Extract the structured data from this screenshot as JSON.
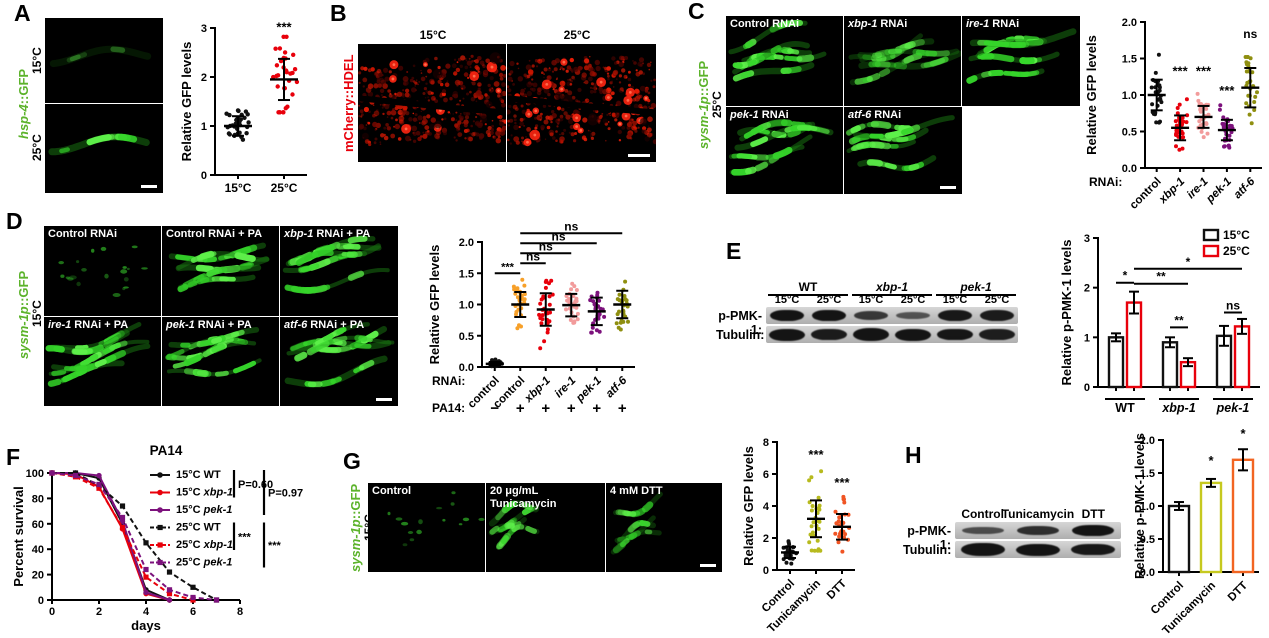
{
  "panel_a": {
    "label": "A",
    "reporter": "_hsp-4_::GFP",
    "images": [
      {
        "temp": "15°C",
        "intensity": "dim"
      },
      {
        "temp": "25°C",
        "intensity": "bright"
      }
    ]
  },
  "panel_b": {
    "label": "B",
    "reporter": "mCherry::HDEL",
    "images": [
      {
        "temp": "15°C",
        "intensity": "medium"
      },
      {
        "temp": "25°C",
        "intensity": "bright"
      }
    ]
  },
  "panel_c": {
    "label": "C",
    "reporter": "_sysm-1p_::GFP",
    "temp": "25°C",
    "images": [
      {
        "label": "Control RNAi",
        "intensity": "bright"
      },
      {
        "label": "_xbp-1_ RNAi",
        "intensity": "medium"
      },
      {
        "label": "_ire-1_ RNAi",
        "intensity": "bright"
      },
      {
        "label": "_pek-1_ RNAi",
        "intensity": "bright"
      },
      {
        "label": "_atf-6_ RNAi",
        "intensity": "bright"
      }
    ]
  },
  "panel_d": {
    "label": "D",
    "reporter": "_sysm-1p_::GFP",
    "temp": "15°C",
    "images": [
      {
        "label": "Control RNAi",
        "intensity": "dim"
      },
      {
        "label": "Control RNAi + PA",
        "intensity": "bright"
      },
      {
        "label": "_xbp-1_ RNAi + PA",
        "intensity": "bright"
      },
      {
        "label": "_ire-1_ RNAi + PA",
        "intensity": "bright"
      },
      {
        "label": "_pek-1_ RNAi + PA",
        "intensity": "bright"
      },
      {
        "label": "_atf-6_ RNAi + PA",
        "intensity": "bright"
      }
    ]
  },
  "panel_e": {
    "label": "E",
    "blot": {
      "groups": [
        "WT",
        "_xbp-1_",
        "_pek-1_"
      ],
      "lane_temps": [
        "15°C",
        "25°C",
        "15°C",
        "25°C",
        "15°C",
        "25°C"
      ],
      "rows": [
        {
          "name": "p-PMK-1:",
          "intensities": [
            1,
            1.1,
            0.62,
            0.35,
            0.95,
            0.92
          ]
        },
        {
          "name": "Tubulin:",
          "intensities": [
            1,
            0.92,
            1.05,
            1,
            0.98,
            0.9
          ]
        }
      ]
    }
  },
  "panel_f": {
    "label": "F"
  },
  "panel_g": {
    "label": "G",
    "reporter": "_sysm-1p_::GFP",
    "temp": "15°C",
    "images": [
      {
        "label": "Control",
        "intensity": "dim"
      },
      {
        "label": "20 μg/mL Tunicamycin",
        "intensity": "medium"
      },
      {
        "label": "4 mM DTT",
        "intensity": "medium"
      }
    ]
  },
  "panel_h": {
    "label": "H",
    "blot": {
      "lanes": [
        "Control",
        "Tunicamycin",
        "DTT"
      ],
      "rows": [
        {
          "name": "p-PMK-1:",
          "intensities": [
            0.42,
            0.72,
            1.02
          ]
        },
        {
          "name": "Tubulin:",
          "intensities": [
            1.15,
            1,
            0.95
          ]
        }
      ]
    }
  },
  "chart_data": {
    "a": {
      "type": "scatter",
      "ylabel": "Relative GFP levels",
      "ylim": [
        0,
        3
      ],
      "yticks": [
        0,
        1,
        2,
        3
      ],
      "ydec": 0,
      "rotate_labels": false,
      "groups": [
        {
          "label": "15°C",
          "color": "#111111",
          "n": 32,
          "mean": 1.0,
          "sd": 0.2,
          "min": 0.72,
          "max": 1.6,
          "sig": ""
        },
        {
          "label": "25°C",
          "color": "#e8000b",
          "n": 32,
          "mean": 1.95,
          "sd": 0.42,
          "min": 1.28,
          "max": 2.82,
          "sig": "***",
          "sig_y": 2.93
        }
      ]
    },
    "c": {
      "type": "scatter",
      "ylabel": "Relative GFP levels",
      "ylim": [
        0,
        2
      ],
      "yticks": [
        0,
        0.5,
        1,
        1.5,
        2
      ],
      "ydec": 1,
      "x_prefix": "RNAi:",
      "rotate_labels": true,
      "groups": [
        {
          "label": "control",
          "color": "#111111",
          "n": 30,
          "mean": 1.0,
          "sd": 0.21,
          "min": 0.6,
          "max": 1.55,
          "sig": ""
        },
        {
          "label": "_xbp-1_",
          "color": "#e8000b",
          "n": 32,
          "mean": 0.55,
          "sd": 0.17,
          "min": 0.25,
          "max": 1.02,
          "sig": "***",
          "sig_y": 1.27
        },
        {
          "label": "_ire-1_",
          "color": "#f29b9b",
          "n": 30,
          "mean": 0.7,
          "sd": 0.15,
          "min": 0.4,
          "max": 1.08,
          "sig": "***",
          "sig_y": 1.27
        },
        {
          "label": "_pek-1_",
          "color": "#7c117c",
          "n": 30,
          "mean": 0.52,
          "sd": 0.14,
          "min": 0.28,
          "max": 0.86,
          "sig": "***",
          "sig_y": 1.0
        },
        {
          "label": "_atf-6_",
          "color": "#8f8f10",
          "n": 28,
          "mean": 1.1,
          "sd": 0.27,
          "min": 0.42,
          "max": 1.52,
          "sig": "ns",
          "sig_y": 1.78
        }
      ]
    },
    "d": {
      "type": "scatter",
      "ylabel": "Relative GFP levels",
      "ylim": [
        0,
        2
      ],
      "yticks": [
        0,
        0.5,
        1,
        1.5,
        2
      ],
      "ydec": 1,
      "x_prefix": "RNAi:",
      "rotate_labels": true,
      "extra_row": {
        "label": "PA14:",
        "values": [
          "−",
          "+",
          "+",
          "+",
          "+",
          "+"
        ]
      },
      "groups": [
        {
          "label": "control",
          "color": "#111111",
          "n": 26,
          "mean": 0.05,
          "sd": 0.03,
          "min": 0.0,
          "max": 0.12,
          "sig": ""
        },
        {
          "label": "control",
          "color": "#f7a029",
          "n": 30,
          "mean": 1.0,
          "sd": 0.2,
          "min": 0.62,
          "max": 1.42,
          "sig": ""
        },
        {
          "label": "_xbp-1_",
          "color": "#e8000b",
          "n": 32,
          "mean": 0.92,
          "sd": 0.26,
          "min": 0.3,
          "max": 1.38,
          "sig": ""
        },
        {
          "label": "_ire-1_",
          "color": "#f29b9b",
          "n": 28,
          "mean": 0.99,
          "sd": 0.18,
          "min": 0.52,
          "max": 1.4,
          "sig": ""
        },
        {
          "label": "_pek-1_",
          "color": "#7c117c",
          "n": 30,
          "mean": 0.89,
          "sd": 0.22,
          "min": 0.55,
          "max": 1.38,
          "sig": ""
        },
        {
          "label": "_atf-6_",
          "color": "#8f8f10",
          "n": 28,
          "mean": 1.0,
          "sd": 0.22,
          "min": 0.6,
          "max": 1.45,
          "sig": ""
        }
      ],
      "anns": [
        {
          "label": "***",
          "x1": 0,
          "x2": 1,
          "y": 1.5
        },
        {
          "label": "ns",
          "x1": 1,
          "x2": 2,
          "y": 1.66
        },
        {
          "label": "ns",
          "x1": 1,
          "x2": 3,
          "y": 1.82
        },
        {
          "label": "ns",
          "x1": 1,
          "x2": 4,
          "y": 1.98
        },
        {
          "label": "ns",
          "x1": 1,
          "x2": 5,
          "y": 2.14
        }
      ]
    },
    "e": {
      "type": "grouped_bar",
      "ylabel": "Relative p-PMK-1 levels",
      "ylim": [
        0,
        3
      ],
      "yticks": [
        0,
        1,
        2,
        3
      ],
      "ydec": 0,
      "legend": [
        {
          "label": "15°C",
          "color": "#111111"
        },
        {
          "label": "25°C",
          "color": "#e8000b"
        }
      ],
      "groups": [
        {
          "label": "WT",
          "values": [
            1.0,
            1.7
          ],
          "errors": [
            0.08,
            0.22
          ]
        },
        {
          "label": "_xbp-1_",
          "values": [
            0.9,
            0.5
          ],
          "errors": [
            0.1,
            0.08
          ]
        },
        {
          "label": "_pek-1_",
          "values": [
            1.03,
            1.22
          ],
          "errors": [
            0.2,
            0.15
          ]
        }
      ],
      "anns": [
        {
          "label": "*",
          "a": [
            0,
            0
          ],
          "b": [
            0,
            1
          ],
          "y": 2.1
        },
        {
          "label": "**",
          "a": [
            0,
            1
          ],
          "b": [
            1,
            1
          ],
          "y": 2.08
        },
        {
          "label": "*",
          "a": [
            0,
            1
          ],
          "b": [
            2,
            1
          ],
          "y": 2.38
        },
        {
          "label": "**",
          "a": [
            1,
            0
          ],
          "b": [
            1,
            1
          ],
          "y": 1.2
        },
        {
          "label": "ns",
          "a": [
            2,
            0
          ],
          "b": [
            2,
            1
          ],
          "y": 1.5
        }
      ]
    },
    "f": {
      "type": "line",
      "title": "PA14",
      "xlabel": "days",
      "ylabel": "Percent survival",
      "xlim": [
        0,
        8
      ],
      "xticks": [
        0,
        2,
        4,
        6,
        8
      ],
      "ylim": [
        0,
        100
      ],
      "yticks": [
        0,
        20,
        40,
        60,
        80,
        100
      ],
      "series": [
        {
          "label": "15°C WT",
          "color": "#111111",
          "dash": "",
          "marker": "circle",
          "x": [
            0,
            1,
            2,
            3,
            4,
            5
          ],
          "y": [
            100,
            100,
            96,
            60,
            8,
            0
          ]
        },
        {
          "label": "15°C _xbp-1_",
          "color": "#e8000b",
          "dash": "",
          "marker": "circle",
          "x": [
            0,
            1,
            2,
            3,
            4,
            5
          ],
          "y": [
            100,
            99,
            89,
            56,
            5,
            0
          ]
        },
        {
          "label": "15°C _pek-1_",
          "color": "#7c117c",
          "dash": "",
          "marker": "circle",
          "x": [
            0,
            1,
            2,
            3,
            4,
            5
          ],
          "y": [
            100,
            100,
            98,
            62,
            6,
            0
          ]
        },
        {
          "label": "25°C WT",
          "color": "#111111",
          "dash": "5,3",
          "marker": "square",
          "x": [
            0,
            1,
            2,
            3,
            4,
            5,
            6,
            7
          ],
          "y": [
            100,
            100,
            90,
            74,
            45,
            22,
            10,
            0
          ]
        },
        {
          "label": "25°C _xbp-1_",
          "color": "#e8000b",
          "dash": "5,3",
          "marker": "square",
          "x": [
            0,
            1,
            2,
            3,
            4,
            5,
            6
          ],
          "y": [
            100,
            97,
            88,
            57,
            18,
            5,
            0
          ]
        },
        {
          "label": "25°C _pek-1_",
          "color": "#7c117c",
          "dash": "5,3",
          "marker": "square",
          "x": [
            0,
            1,
            2,
            3,
            4,
            5,
            6,
            7
          ],
          "y": [
            100,
            98,
            91,
            65,
            24,
            8,
            2,
            0
          ]
        }
      ],
      "stats": [
        {
          "label": "P=0.60",
          "rows": [
            0,
            1
          ],
          "col": 0
        },
        {
          "label": "P=0.97",
          "rows": [
            0,
            2
          ],
          "col": 1
        },
        {
          "label": "***",
          "rows": [
            3,
            4
          ],
          "col": 0
        },
        {
          "label": "***",
          "rows": [
            3,
            5
          ],
          "col": 1
        }
      ]
    },
    "g": {
      "type": "scatter",
      "ylabel": "Relative GFP levels",
      "ylim": [
        0,
        8
      ],
      "yticks": [
        0,
        2,
        4,
        6,
        8
      ],
      "ydec": 0,
      "rotate_labels": true,
      "groups": [
        {
          "label": "Control",
          "color": "#111111",
          "n": 30,
          "mean": 1.1,
          "sd": 0.35,
          "min": 0.4,
          "max": 1.8,
          "sig": ""
        },
        {
          "label": "Tunicamycin",
          "color": "#b7ba1e",
          "n": 32,
          "mean": 3.2,
          "sd": 1.15,
          "min": 1.2,
          "max": 6.2,
          "sig": "***",
          "sig_y": 6.95
        },
        {
          "label": "DTT",
          "color": "#f05423",
          "n": 30,
          "mean": 2.7,
          "sd": 0.8,
          "min": 1.15,
          "max": 4.6,
          "sig": "***",
          "sig_y": 5.2
        }
      ]
    },
    "h": {
      "type": "bar",
      "ylabel": "Relative p-PMK-1 levels",
      "ylim": [
        0,
        2
      ],
      "yticks": [
        0,
        0.5,
        1,
        1.5,
        2
      ],
      "ydec": 1,
      "rotate_labels": true,
      "bars": [
        {
          "label": "Control",
          "color": "#111111",
          "value": 1.0,
          "error": 0.06,
          "sig": ""
        },
        {
          "label": "Tunicamycin",
          "color": "#c6c91f",
          "value": 1.35,
          "error": 0.06,
          "sig": "*",
          "sig_y": 1.56
        },
        {
          "label": "DTT",
          "color": "#f26522",
          "value": 1.7,
          "error": 0.16,
          "sig": "*",
          "sig_y": 1.97
        }
      ]
    }
  }
}
